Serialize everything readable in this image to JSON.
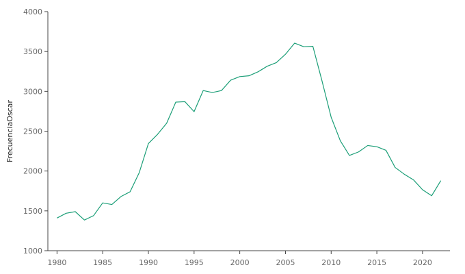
{
  "chart_data": {
    "type": "line",
    "title": "",
    "xlabel": "",
    "ylabel": "FrecuenciaOscar",
    "xlim": [
      1979,
      2023
    ],
    "ylim": [
      1000,
      4000
    ],
    "xticks": [
      1980,
      1985,
      1990,
      1995,
      2000,
      2005,
      2010,
      2015,
      2020
    ],
    "yticks": [
      1000,
      1500,
      2000,
      2500,
      3000,
      3500,
      4000
    ],
    "grid": false,
    "line_color": "#1b9e77",
    "series": [
      {
        "x": [
          1980,
          1981,
          1982,
          1983,
          1984,
          1985,
          1986,
          1987,
          1988,
          1989,
          1990,
          1991,
          1992,
          1993,
          1994,
          1995,
          1996,
          1997,
          1998,
          1999,
          2000,
          2001,
          2002,
          2003,
          2004,
          2005,
          2006,
          2007,
          2008,
          2009,
          2010,
          2011,
          2012,
          2013,
          2014,
          2015,
          2016,
          2017,
          2018,
          2019,
          2020,
          2021,
          2022
        ],
        "values": [
          1410,
          1470,
          1490,
          1385,
          1440,
          1600,
          1580,
          1680,
          1740,
          1980,
          2345,
          2460,
          2600,
          2865,
          2870,
          2745,
          3010,
          2985,
          3010,
          3140,
          3185,
          3195,
          3245,
          3315,
          3360,
          3465,
          3605,
          3560,
          3565,
          3130,
          2675,
          2380,
          2195,
          2240,
          2320,
          2305,
          2260,
          2045,
          1960,
          1890,
          1765,
          1690,
          1880
        ]
      }
    ]
  }
}
